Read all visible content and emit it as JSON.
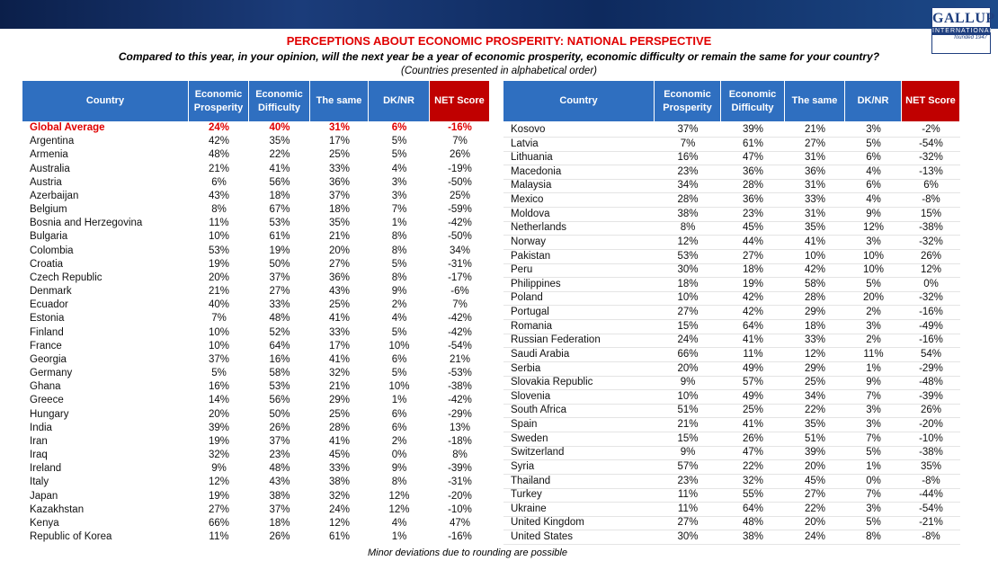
{
  "header": {
    "logo": "GALLUP",
    "logo_sub": "INTERNATIONAL",
    "logo_founded": "founded 1947",
    "title": "PERCEPTIONS ABOUT ECONOMIC PROSPERITY: NATIONAL PERSPECTIVE",
    "subtitle": "Compared to this year, in your opinion, will the next year be a year of economic prosperity, economic difficulty or remain the same for your country?",
    "note": "(Countries presented in alphabetical order)"
  },
  "tables": [
    {
      "columns": [
        "Country",
        "Economic Prosperity",
        "Economic Difficulty",
        "The same",
        "DK/NR",
        "NET Score"
      ],
      "rows": [
        [
          "Global Average",
          "24%",
          "40%",
          "31%",
          "6%",
          "-16%"
        ],
        [
          "Argentina",
          "42%",
          "35%",
          "17%",
          "5%",
          "7%"
        ],
        [
          "Armenia",
          "48%",
          "22%",
          "25%",
          "5%",
          "26%"
        ],
        [
          "Australia",
          "21%",
          "41%",
          "33%",
          "4%",
          "-19%"
        ],
        [
          "Austria",
          "6%",
          "56%",
          "36%",
          "3%",
          "-50%"
        ],
        [
          "Azerbaijan",
          "43%",
          "18%",
          "37%",
          "3%",
          "25%"
        ],
        [
          "Belgium",
          "8%",
          "67%",
          "18%",
          "7%",
          "-59%"
        ],
        [
          "Bosnia and Herzegovina",
          "11%",
          "53%",
          "35%",
          "1%",
          "-42%"
        ],
        [
          "Bulgaria",
          "10%",
          "61%",
          "21%",
          "8%",
          "-50%"
        ],
        [
          "Colombia",
          "53%",
          "19%",
          "20%",
          "8%",
          "34%"
        ],
        [
          "Croatia",
          "19%",
          "50%",
          "27%",
          "5%",
          "-31%"
        ],
        [
          "Czech Republic",
          "20%",
          "37%",
          "36%",
          "8%",
          "-17%"
        ],
        [
          "Denmark",
          "21%",
          "27%",
          "43%",
          "9%",
          "-6%"
        ],
        [
          "Ecuador",
          "40%",
          "33%",
          "25%",
          "2%",
          "7%"
        ],
        [
          "Estonia",
          "7%",
          "48%",
          "41%",
          "4%",
          "-42%"
        ],
        [
          "Finland",
          "10%",
          "52%",
          "33%",
          "5%",
          "-42%"
        ],
        [
          "France",
          "10%",
          "64%",
          "17%",
          "10%",
          "-54%"
        ],
        [
          "Georgia",
          "37%",
          "16%",
          "41%",
          "6%",
          "21%"
        ],
        [
          "Germany",
          "5%",
          "58%",
          "32%",
          "5%",
          "-53%"
        ],
        [
          "Ghana",
          "16%",
          "53%",
          "21%",
          "10%",
          "-38%"
        ],
        [
          "Greece",
          "14%",
          "56%",
          "29%",
          "1%",
          "-42%"
        ],
        [
          "Hungary",
          "20%",
          "50%",
          "25%",
          "6%",
          "-29%"
        ],
        [
          "India",
          "39%",
          "26%",
          "28%",
          "6%",
          "13%"
        ],
        [
          "Iran",
          "19%",
          "37%",
          "41%",
          "2%",
          "-18%"
        ],
        [
          "Iraq",
          "32%",
          "23%",
          "45%",
          "0%",
          "8%"
        ],
        [
          "Ireland",
          "9%",
          "48%",
          "33%",
          "9%",
          "-39%"
        ],
        [
          "Italy",
          "12%",
          "43%",
          "38%",
          "8%",
          "-31%"
        ],
        [
          "Japan",
          "19%",
          "38%",
          "32%",
          "12%",
          "-20%"
        ],
        [
          "Kazakhstan",
          "27%",
          "37%",
          "24%",
          "12%",
          "-10%"
        ],
        [
          "Kenya",
          "66%",
          "18%",
          "12%",
          "4%",
          "47%"
        ],
        [
          "Republic of Korea",
          "11%",
          "26%",
          "61%",
          "1%",
          "-16%"
        ]
      ]
    },
    {
      "columns": [
        "Country",
        "Economic Prosperity",
        "Economic Difficulty",
        "The same",
        "DK/NR",
        "NET Score"
      ],
      "rows": [
        [
          "Kosovo",
          "37%",
          "39%",
          "21%",
          "3%",
          "-2%"
        ],
        [
          "Latvia",
          "7%",
          "61%",
          "27%",
          "5%",
          "-54%"
        ],
        [
          "Lithuania",
          "16%",
          "47%",
          "31%",
          "6%",
          "-32%"
        ],
        [
          "Macedonia",
          "23%",
          "36%",
          "36%",
          "4%",
          "-13%"
        ],
        [
          "Malaysia",
          "34%",
          "28%",
          "31%",
          "6%",
          "6%"
        ],
        [
          "Mexico",
          "28%",
          "36%",
          "33%",
          "4%",
          "-8%"
        ],
        [
          "Moldova",
          "38%",
          "23%",
          "31%",
          "9%",
          "15%"
        ],
        [
          "Netherlands",
          "8%",
          "45%",
          "35%",
          "12%",
          "-38%"
        ],
        [
          "Norway",
          "12%",
          "44%",
          "41%",
          "3%",
          "-32%"
        ],
        [
          "Pakistan",
          "53%",
          "27%",
          "10%",
          "10%",
          "26%"
        ],
        [
          "Peru",
          "30%",
          "18%",
          "42%",
          "10%",
          "12%"
        ],
        [
          "Philippines",
          "18%",
          "19%",
          "58%",
          "5%",
          "0%"
        ],
        [
          "Poland",
          "10%",
          "42%",
          "28%",
          "20%",
          "-32%"
        ],
        [
          "Portugal",
          "27%",
          "42%",
          "29%",
          "2%",
          "-16%"
        ],
        [
          "Romania",
          "15%",
          "64%",
          "18%",
          "3%",
          "-49%"
        ],
        [
          "Russian Federation",
          "24%",
          "41%",
          "33%",
          "2%",
          "-16%"
        ],
        [
          "Saudi Arabia",
          "66%",
          "11%",
          "12%",
          "11%",
          "54%"
        ],
        [
          "Serbia",
          "20%",
          "49%",
          "29%",
          "1%",
          "-29%"
        ],
        [
          "Slovakia Republic",
          "9%",
          "57%",
          "25%",
          "9%",
          "-48%"
        ],
        [
          "Slovenia",
          "10%",
          "49%",
          "34%",
          "7%",
          "-39%"
        ],
        [
          "South Africa",
          "51%",
          "25%",
          "22%",
          "3%",
          "26%"
        ],
        [
          "Spain",
          "21%",
          "41%",
          "35%",
          "3%",
          "-20%"
        ],
        [
          "Sweden",
          "15%",
          "26%",
          "51%",
          "7%",
          "-10%"
        ],
        [
          "Switzerland",
          "9%",
          "47%",
          "39%",
          "5%",
          "-38%"
        ],
        [
          "Syria",
          "57%",
          "22%",
          "20%",
          "1%",
          "35%"
        ],
        [
          "Thailand",
          "23%",
          "32%",
          "45%",
          "0%",
          "-8%"
        ],
        [
          "Turkey",
          "11%",
          "55%",
          "27%",
          "7%",
          "-44%"
        ],
        [
          "Ukraine",
          "11%",
          "64%",
          "22%",
          "3%",
          "-54%"
        ],
        [
          "United Kingdom",
          "27%",
          "48%",
          "20%",
          "5%",
          "-21%"
        ],
        [
          "United States",
          "30%",
          "38%",
          "24%",
          "8%",
          "-8%"
        ]
      ]
    }
  ],
  "footer": "Minor deviations due to rounding are possible"
}
